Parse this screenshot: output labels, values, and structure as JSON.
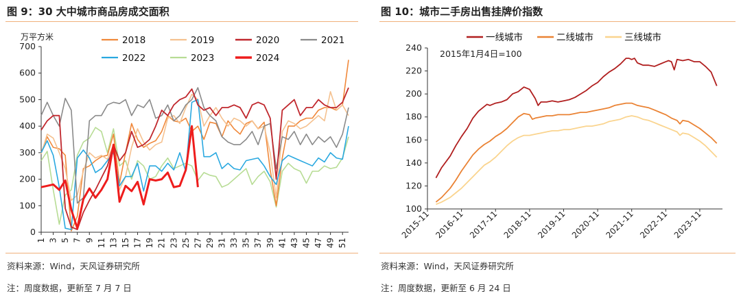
{
  "charts": [
    {
      "title": "图 9：30 大中城市商品房成交面积",
      "source": "资料来源：Wind，天风证券研究所",
      "note": "注：周度数据，更新至 7 月 7 日"
    },
    {
      "title": "图 10：城市二手房出售挂牌价指数",
      "source": "资料来源：Wind，天风证券研究所",
      "note": "注：周度数据，更新至 6 月 24 日"
    }
  ],
  "chart_data": [
    {
      "type": "line",
      "title": "图 9：30 大中城市商品房成交面积",
      "ylabel": "万平方米",
      "xlabel": "",
      "ylim": [
        0,
        700
      ],
      "yticks": [
        0,
        100,
        200,
        300,
        400,
        500,
        600,
        700
      ],
      "xlim": [
        1,
        52
      ],
      "xticks": [
        1,
        3,
        5,
        7,
        9,
        11,
        13,
        15,
        17,
        19,
        21,
        23,
        25,
        27,
        29,
        31,
        33,
        35,
        37,
        39,
        41,
        43,
        45,
        47,
        49,
        51
      ],
      "grid": false,
      "legend": "top",
      "series": [
        {
          "name": "2018",
          "color": "#f0883a",
          "width": 1.6,
          "values": [
            300,
            360,
            320,
            315,
            290,
            5,
            60,
            240,
            250,
            270,
            285,
            290,
            370,
            185,
            300,
            410,
            350,
            320,
            335,
            345,
            380,
            440,
            420,
            415,
            430,
            380,
            400,
            350,
            415,
            410,
            360,
            420,
            390,
            370,
            410,
            420,
            390,
            415,
            235,
            100,
            280,
            400,
            400,
            420,
            430,
            430,
            460,
            470,
            470,
            460,
            480,
            650
          ]
        },
        {
          "name": "2019",
          "color": "#f5c18f",
          "width": 1.6,
          "values": [
            295,
            370,
            355,
            300,
            240,
            120,
            140,
            230,
            300,
            280,
            290,
            275,
            330,
            160,
            210,
            320,
            390,
            340,
            310,
            330,
            340,
            430,
            440,
            410,
            470,
            520,
            500,
            400,
            440,
            470,
            430,
            400,
            430,
            420,
            400,
            420,
            390,
            400,
            300,
            130,
            380,
            420,
            410,
            390,
            400,
            420,
            440,
            420,
            530,
            460,
            480,
            440
          ]
        },
        {
          "name": "2020",
          "color": "#c0272d",
          "width": 1.8,
          "values": [
            385,
            420,
            440,
            440,
            90,
            20,
            10,
            75,
            120,
            160,
            205,
            250,
            330,
            270,
            300,
            380,
            320,
            330,
            350,
            400,
            460,
            440,
            480,
            500,
            510,
            540,
            480,
            460,
            470,
            440,
            470,
            470,
            480,
            470,
            430,
            480,
            490,
            480,
            430,
            200,
            460,
            480,
            500,
            440,
            470,
            470,
            500,
            480,
            470,
            470,
            490,
            545
          ]
        },
        {
          "name": "2021",
          "color": "#8a8a8a",
          "width": 1.6,
          "values": [
            440,
            490,
            440,
            400,
            505,
            460,
            110,
            130,
            420,
            440,
            440,
            480,
            490,
            485,
            500,
            440,
            480,
            470,
            500,
            430,
            440,
            480,
            420,
            440,
            480,
            500,
            545,
            470,
            440,
            420,
            360,
            340,
            330,
            330,
            350,
            380,
            330,
            400,
            410,
            240,
            360,
            350,
            380,
            330,
            370,
            330,
            360,
            340,
            360,
            320,
            370,
            470
          ]
        },
        {
          "name": "2022",
          "color": "#29a8e0",
          "width": 1.6,
          "values": [
            300,
            345,
            290,
            170,
            15,
            10,
            280,
            310,
            280,
            225,
            240,
            270,
            300,
            175,
            210,
            210,
            260,
            155,
            250,
            250,
            230,
            260,
            235,
            300,
            230,
            490,
            500,
            285,
            285,
            300,
            240,
            260,
            240,
            235,
            270,
            275,
            280,
            250,
            210,
            180,
            270,
            290,
            280,
            270,
            260,
            250,
            280,
            265,
            300,
            280,
            275,
            400
          ]
        },
        {
          "name": "2023",
          "color": "#b7dc94",
          "width": 1.6,
          "values": [
            270,
            305,
            160,
            30,
            140,
            160,
            290,
            340,
            355,
            395,
            380,
            300,
            390,
            250,
            270,
            200,
            270,
            250,
            200,
            210,
            250,
            280,
            240,
            250,
            260,
            250,
            195,
            225,
            215,
            210,
            170,
            180,
            200,
            220,
            240,
            180,
            210,
            230,
            190,
            95,
            230,
            260,
            240,
            230,
            185,
            230,
            230,
            250,
            240,
            245,
            280,
            360
          ]
        },
        {
          "name": "2024",
          "color": "#ee1c1c",
          "width": 3,
          "values": [
            170,
            175,
            180,
            160,
            195,
            85,
            15,
            125,
            165,
            130,
            160,
            200,
            330,
            115,
            175,
            155,
            190,
            105,
            200,
            195,
            200,
            225,
            170,
            175,
            235,
            400,
            170
          ]
        }
      ]
    },
    {
      "type": "line",
      "title": "图 10：城市二手房出售挂牌价指数",
      "annotation": "2015年1月4日=100",
      "ylim": [
        100,
        240
      ],
      "yticks": [
        100,
        120,
        140,
        160,
        180,
        200,
        220,
        240
      ],
      "xticks": [
        "2015-11",
        "2016-11",
        "2017-11",
        "2018-11",
        "2019-11",
        "2020-11",
        "2021-11",
        "2022-11",
        "2023-11"
      ],
      "xtick_pos": [
        0,
        12,
        24,
        36,
        48,
        60,
        72,
        84,
        96
      ],
      "xlim": [
        0,
        104
      ],
      "grid": false,
      "legend": "top",
      "series": [
        {
          "name": "一线城市",
          "color": "#b01e1e",
          "width": 1.8,
          "t": [
            3,
            5,
            8,
            10,
            12,
            14,
            16,
            18,
            20,
            21,
            22,
            24,
            26,
            28,
            30,
            32,
            34,
            36,
            38,
            39,
            40,
            42,
            44,
            46,
            48,
            50,
            52,
            54,
            56,
            58,
            60,
            62,
            64,
            66,
            68,
            70,
            71,
            72,
            73,
            74,
            75,
            76,
            78,
            80,
            82,
            84,
            85,
            86,
            87,
            88,
            90,
            92,
            94,
            96,
            98,
            100,
            102
          ],
          "values": [
            127,
            136,
            146,
            155,
            163,
            170,
            179,
            185,
            189,
            191,
            190,
            192,
            193,
            195,
            200,
            202,
            206,
            204,
            196,
            190,
            193,
            193,
            194,
            193,
            194,
            195,
            197,
            200,
            203,
            207,
            210,
            215,
            219,
            222,
            226,
            231,
            231,
            230,
            231,
            227,
            226,
            225,
            225,
            224,
            226,
            228,
            229,
            228,
            221,
            230,
            229,
            230,
            228,
            228,
            224,
            219,
            207
          ]
        },
        {
          "name": "二线城市",
          "color": "#ea8233",
          "width": 1.8,
          "t": [
            3,
            5,
            8,
            10,
            12,
            14,
            16,
            18,
            20,
            22,
            24,
            26,
            28,
            30,
            32,
            34,
            36,
            37,
            38,
            40,
            42,
            44,
            46,
            48,
            50,
            52,
            54,
            56,
            58,
            60,
            62,
            64,
            66,
            68,
            70,
            72,
            74,
            76,
            78,
            80,
            82,
            84,
            86,
            88,
            89,
            90,
            92,
            94,
            96,
            98,
            100,
            102
          ],
          "values": [
            106,
            110,
            118,
            125,
            133,
            140,
            147,
            152,
            156,
            159,
            163,
            166,
            170,
            175,
            180,
            183,
            182,
            178,
            179,
            180,
            181,
            181,
            182,
            182,
            182,
            183,
            184,
            184,
            185,
            186,
            187,
            188,
            190,
            191,
            192,
            192,
            190,
            189,
            188,
            186,
            184,
            182,
            179,
            177,
            174,
            177,
            176,
            173,
            170,
            166,
            162,
            157
          ]
        },
        {
          "name": "三线城市",
          "color": "#fad48e",
          "width": 1.8,
          "t": [
            3,
            5,
            8,
            10,
            12,
            14,
            16,
            18,
            20,
            22,
            24,
            26,
            28,
            30,
            32,
            34,
            36,
            38,
            40,
            42,
            44,
            46,
            48,
            50,
            52,
            54,
            56,
            58,
            60,
            62,
            64,
            66,
            68,
            70,
            72,
            74,
            76,
            78,
            80,
            82,
            84,
            86,
            88,
            89,
            90,
            92,
            94,
            96,
            98,
            100,
            102
          ],
          "values": [
            104,
            106,
            110,
            114,
            118,
            123,
            128,
            133,
            138,
            141,
            145,
            150,
            155,
            159,
            162,
            164,
            164,
            165,
            166,
            167,
            168,
            168,
            169,
            169,
            170,
            171,
            172,
            172,
            173,
            174,
            176,
            177,
            178,
            180,
            181,
            180,
            178,
            177,
            175,
            173,
            171,
            169,
            167,
            164,
            166,
            165,
            162,
            159,
            155,
            150,
            145
          ]
        }
      ]
    }
  ]
}
